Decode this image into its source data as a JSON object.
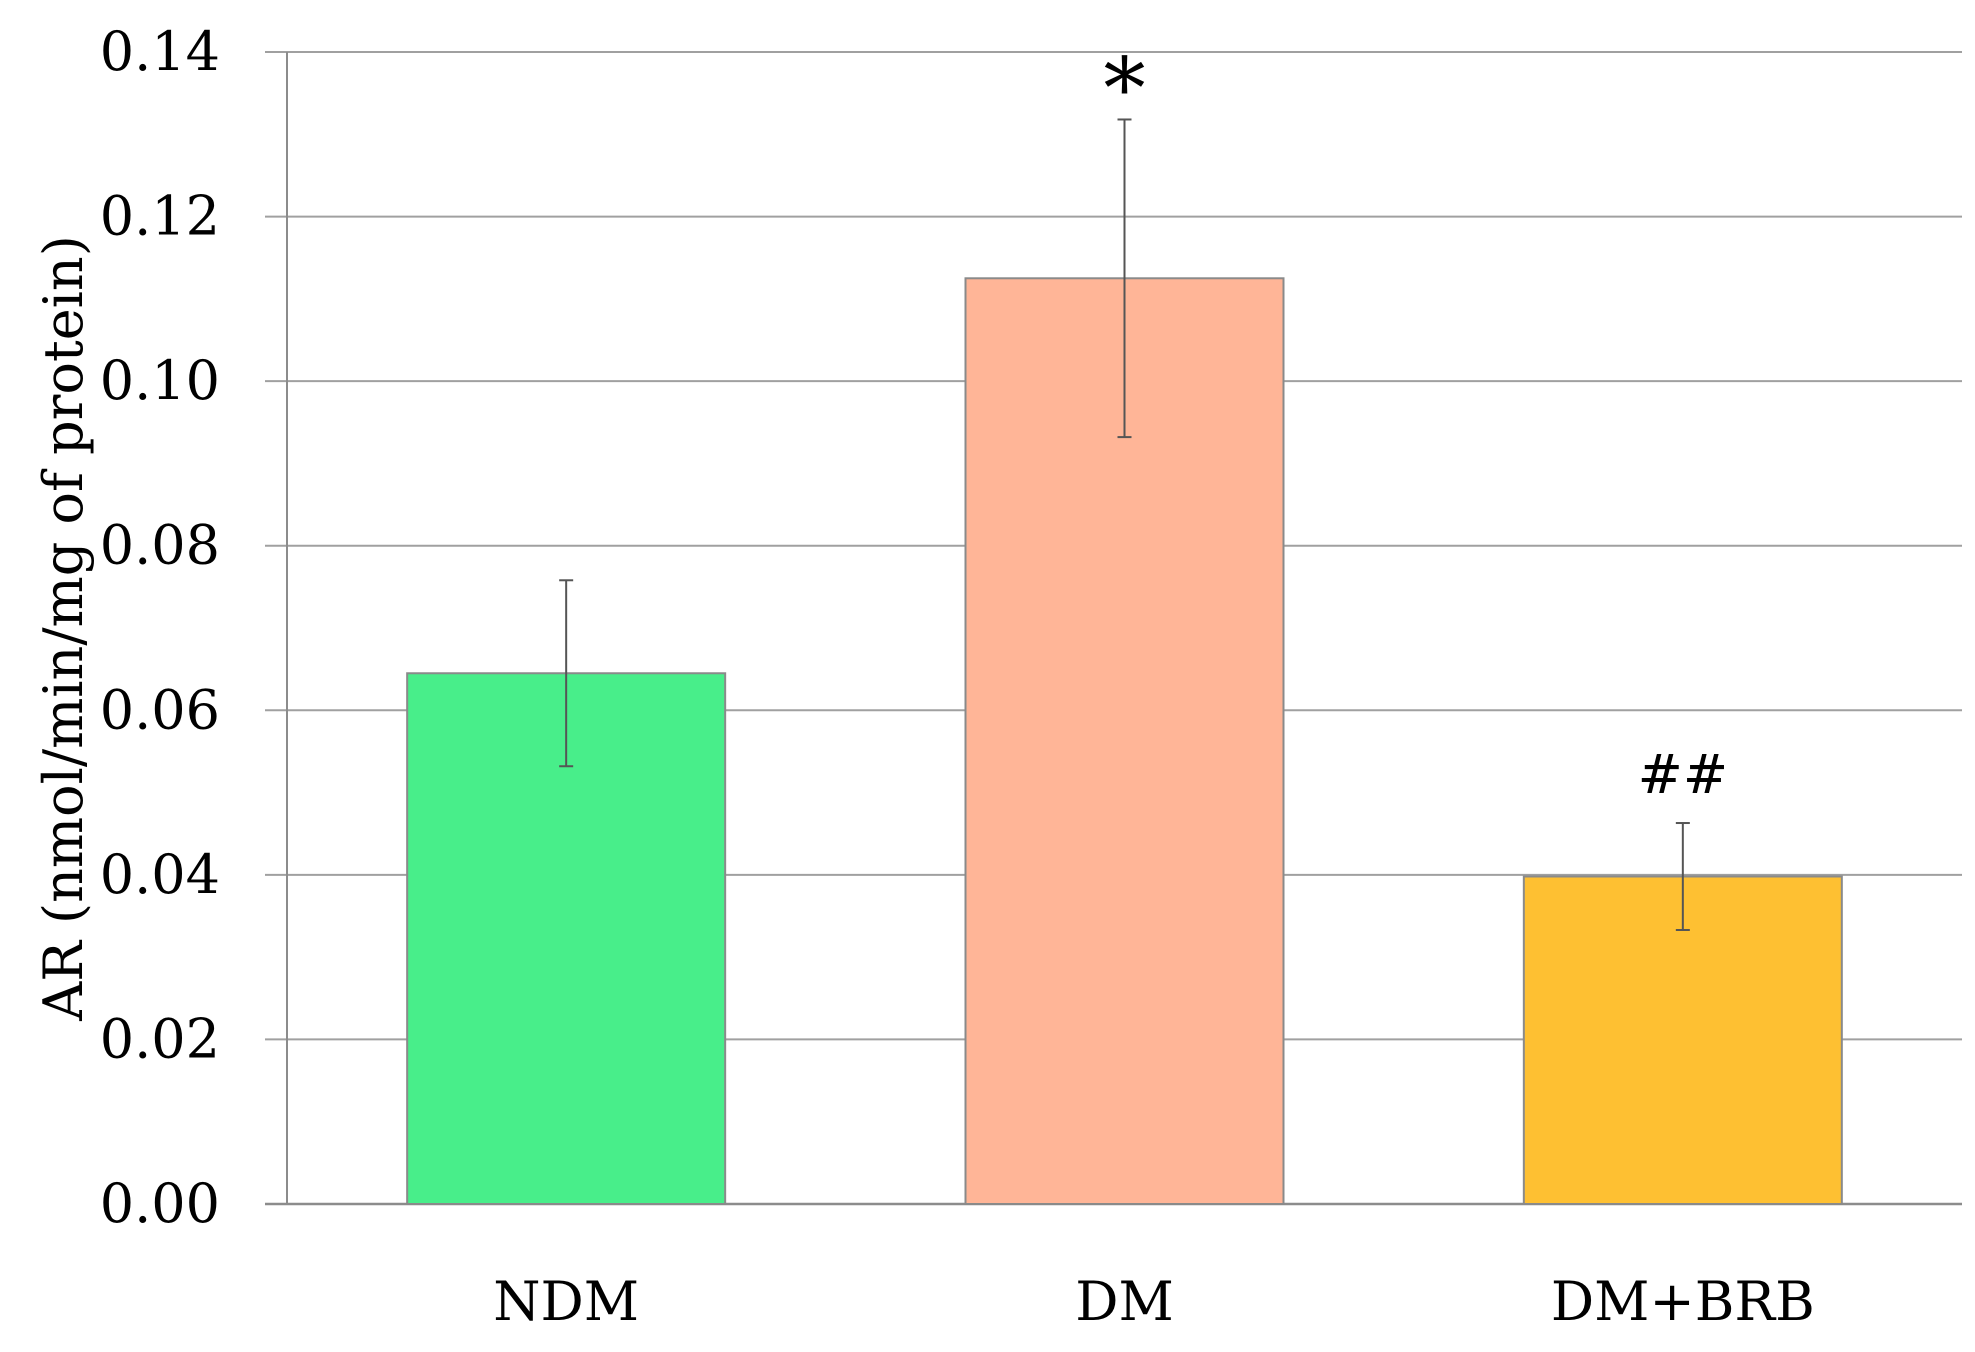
{
  "chart_data": {
    "type": "bar",
    "title": "",
    "xlabel": "",
    "ylabel": "AR (nmol/min/mg of protein)",
    "ylim": [
      0,
      0.14
    ],
    "yticks": [
      "0.00",
      "0.02",
      "0.04",
      "0.06",
      "0.08",
      "0.10",
      "0.12",
      "0.14"
    ],
    "grid": true,
    "legend": "none",
    "categories": [
      "NDM",
      "DM",
      "DM+BRB"
    ],
    "values": [
      0.0645,
      0.1125,
      0.0398
    ],
    "error": [
      0.0113,
      0.0193,
      0.0065
    ],
    "colors": [
      "#48EE8A",
      "#FFB597",
      "#FEC032"
    ],
    "annotations": [
      "",
      "*",
      "##"
    ]
  }
}
